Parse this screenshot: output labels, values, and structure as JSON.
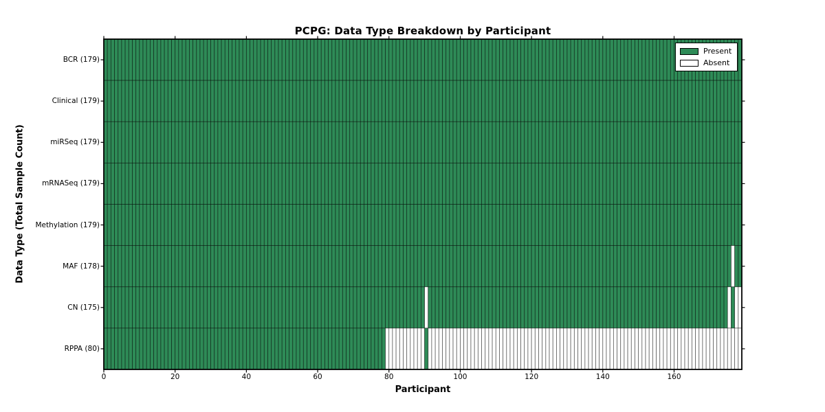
{
  "chart_data": {
    "type": "heatmap",
    "title": "PCPG: Data Type Breakdown by Participant",
    "xlabel": "Participant",
    "ylabel": "Data Type (Total Sample Count)",
    "n_participants": 179,
    "xlim": [
      0,
      179
    ],
    "x_ticks": [
      0,
      20,
      40,
      60,
      80,
      100,
      120,
      140,
      160
    ],
    "colors": {
      "present": "#2e8b57",
      "absent": "#ffffff",
      "cell_edge": "rgba(0,0,0,0.55)",
      "spine": "#000000",
      "background": "#ffffff"
    },
    "legend": {
      "position": "top-right",
      "entries": [
        {
          "label": "Present",
          "color": "#2e8b57"
        },
        {
          "label": "Absent",
          "color": "#ffffff"
        }
      ]
    },
    "rows": [
      {
        "label": "BCR (179)",
        "data_type": "BCR",
        "count": 179,
        "present_ranges": [
          [
            0,
            178
          ]
        ]
      },
      {
        "label": "Clinical (179)",
        "data_type": "Clinical",
        "count": 179,
        "present_ranges": [
          [
            0,
            178
          ]
        ]
      },
      {
        "label": "miRSeq (179)",
        "data_type": "miRSeq",
        "count": 179,
        "present_ranges": [
          [
            0,
            178
          ]
        ]
      },
      {
        "label": "mRNASeq (179)",
        "data_type": "mRNASeq",
        "count": 179,
        "present_ranges": [
          [
            0,
            178
          ]
        ]
      },
      {
        "label": "Methylation (179)",
        "data_type": "Methylation",
        "count": 179,
        "present_ranges": [
          [
            0,
            178
          ]
        ]
      },
      {
        "label": "MAF (178)",
        "data_type": "MAF",
        "count": 178,
        "present_ranges": [
          [
            0,
            175
          ],
          [
            177,
            178
          ]
        ]
      },
      {
        "label": "CN (175)",
        "data_type": "CN",
        "count": 175,
        "present_ranges": [
          [
            0,
            89
          ],
          [
            91,
            174
          ],
          [
            176,
            176
          ]
        ]
      },
      {
        "label": "RPPA (80)",
        "data_type": "RPPA",
        "count": 80,
        "present_ranges": [
          [
            0,
            78
          ],
          [
            90,
            90
          ]
        ]
      }
    ]
  }
}
